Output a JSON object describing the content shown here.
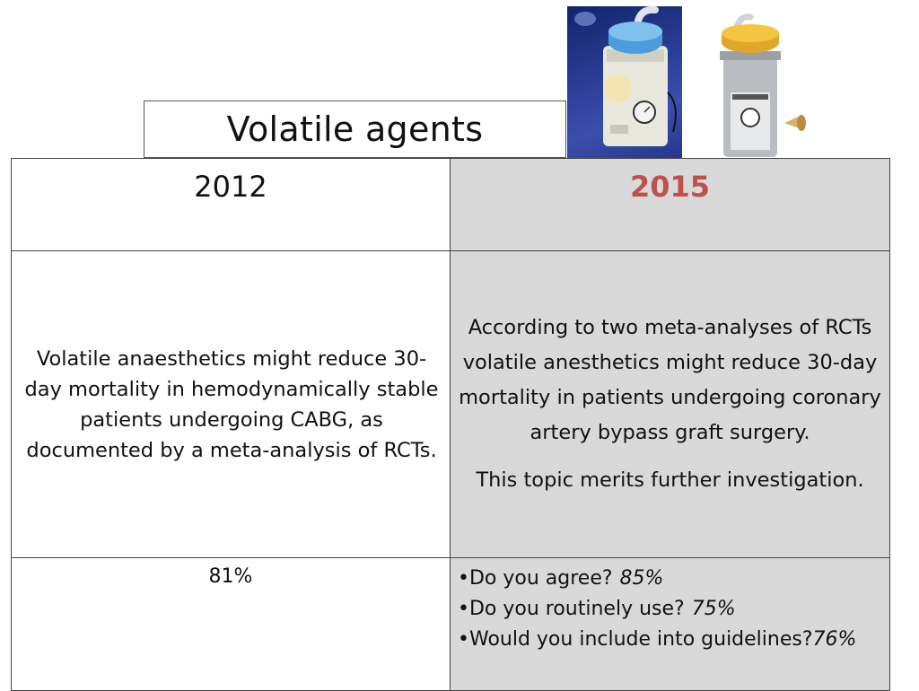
{
  "slide": {
    "title": "Volatile agents"
  },
  "table": {
    "headers": {
      "left": "2012",
      "right": "2015",
      "right_color": "#c0504d"
    },
    "statement_left": "Volatile anaesthetics might reduce 30-day mortality in hemodynamically stable patients undergoing CABG, as documented by a meta-analysis of RCTs.",
    "statement_right": [
      "According to two meta-analyses of RCTs volatile anesthetics might reduce 30-day mortality in patients undergoing coronary artery bypass graft surgery.",
      "This topic merits further investigation."
    ],
    "result_left": "81%",
    "survey_right": [
      {
        "question": "•Do you agree?",
        "value": "85%"
      },
      {
        "question": "•Do you routinely use?",
        "value": "75%"
      },
      {
        "question": "•Would you include into guidelines?",
        "value": "76%"
      }
    ]
  }
}
